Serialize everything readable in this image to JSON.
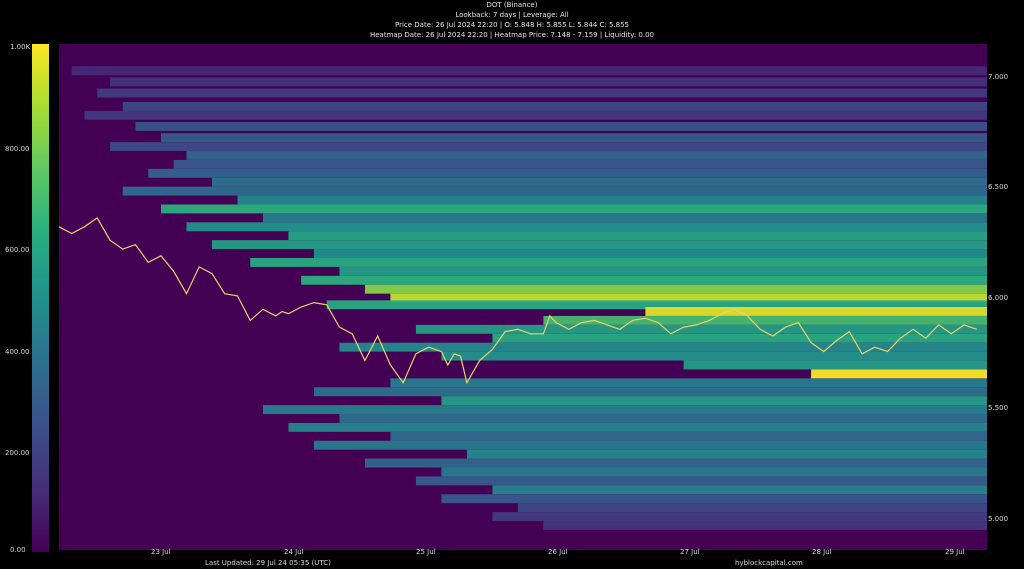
{
  "header": {
    "title": "DOT (Binance)",
    "subtitle": "Lookback: 7 days | Leverage: All",
    "price_line": "Price Date: 26 Jul 2024 22:20 | O: 5.848 H: 5.855 L: 5.844 C: 5.855",
    "heatmap_line": "Heatmap Date: 26 Jul 2024 22:20 | Heatmap Price: 7.148 - 7.159 | Liquidity: 0.00"
  },
  "footer": {
    "updated": "Last Updated: 29 Jul 24 05:35 (UTC)",
    "source": "hyblockcapital.com"
  },
  "colors": {
    "background": "#000000",
    "heatmap_low": "#440154",
    "heatmap_mid": "#21908d",
    "heatmap_high": "#fde725",
    "price_line": "#e8d46a"
  },
  "chart_data": {
    "type": "heatmap",
    "title": "DOT (Binance)",
    "colorbar": {
      "ticks": [
        "0.00",
        "200.00",
        "400.00",
        "600.00",
        "800.00",
        "1.00K"
      ],
      "range": [
        0,
        1000
      ]
    },
    "x_ticks": [
      {
        "label": "23 Jul",
        "t": 1
      },
      {
        "label": "24 Jul",
        "t": 2
      },
      {
        "label": "25 Jul",
        "t": 3
      },
      {
        "label": "26 Jul",
        "t": 4
      },
      {
        "label": "27 Jul",
        "t": 5
      },
      {
        "label": "28 Jul",
        "t": 6
      },
      {
        "label": "29 Jul",
        "t": 7
      }
    ],
    "xlim": [
      0,
      7.28
    ],
    "y_ticks": [
      "5.000",
      "5.500",
      "6.000",
      "6.500",
      "7.000"
    ],
    "ylim": [
      4.85,
      7.12
    ],
    "liquidity_bands": [
      {
        "price": 7.0,
        "value": 120,
        "start": 0.1
      },
      {
        "price": 6.95,
        "value": 150,
        "start": 0.4
      },
      {
        "price": 6.9,
        "value": 180,
        "start": 0.3
      },
      {
        "price": 6.84,
        "value": 220,
        "start": 0.5
      },
      {
        "price": 6.8,
        "value": 170,
        "start": 0.2
      },
      {
        "price": 6.75,
        "value": 260,
        "start": 0.6
      },
      {
        "price": 6.7,
        "value": 300,
        "start": 0.8
      },
      {
        "price": 6.66,
        "value": 230,
        "start": 0.4
      },
      {
        "price": 6.62,
        "value": 340,
        "start": 1.0
      },
      {
        "price": 6.58,
        "value": 280,
        "start": 0.9
      },
      {
        "price": 6.54,
        "value": 320,
        "start": 0.7
      },
      {
        "price": 6.5,
        "value": 380,
        "start": 1.2
      },
      {
        "price": 6.46,
        "value": 360,
        "start": 0.5
      },
      {
        "price": 6.42,
        "value": 470,
        "start": 1.4
      },
      {
        "price": 6.38,
        "value": 640,
        "start": 0.8
      },
      {
        "price": 6.34,
        "value": 420,
        "start": 1.6
      },
      {
        "price": 6.3,
        "value": 520,
        "start": 1.0
      },
      {
        "price": 6.26,
        "value": 600,
        "start": 1.8
      },
      {
        "price": 6.22,
        "value": 560,
        "start": 1.2
      },
      {
        "price": 6.18,
        "value": 500,
        "start": 2.0
      },
      {
        "price": 6.14,
        "value": 620,
        "start": 1.5
      },
      {
        "price": 6.1,
        "value": 560,
        "start": 2.2
      },
      {
        "price": 6.06,
        "value": 640,
        "start": 1.9
      },
      {
        "price": 6.02,
        "value": 820,
        "start": 2.4
      },
      {
        "price": 5.98,
        "value": 920,
        "start": 2.6
      },
      {
        "price": 5.95,
        "value": 620,
        "start": 2.1
      },
      {
        "price": 5.92,
        "value": 960,
        "start": 4.6
      },
      {
        "price": 5.88,
        "value": 700,
        "start": 3.8
      },
      {
        "price": 5.84,
        "value": 560,
        "start": 2.8
      },
      {
        "price": 5.8,
        "value": 620,
        "start": 3.4
      },
      {
        "price": 5.76,
        "value": 480,
        "start": 2.2
      },
      {
        "price": 5.72,
        "value": 520,
        "start": 3.0
      },
      {
        "price": 5.68,
        "value": 560,
        "start": 4.9
      },
      {
        "price": 5.64,
        "value": 1000,
        "start": 5.9
      },
      {
        "price": 5.6,
        "value": 420,
        "start": 2.6
      },
      {
        "price": 5.56,
        "value": 380,
        "start": 2.0
      },
      {
        "price": 5.52,
        "value": 560,
        "start": 3.0
      },
      {
        "price": 5.48,
        "value": 440,
        "start": 1.6
      },
      {
        "price": 5.44,
        "value": 380,
        "start": 2.2
      },
      {
        "price": 5.4,
        "value": 460,
        "start": 1.8
      },
      {
        "price": 5.36,
        "value": 360,
        "start": 2.6
      },
      {
        "price": 5.32,
        "value": 420,
        "start": 2.0
      },
      {
        "price": 5.28,
        "value": 480,
        "start": 3.2
      },
      {
        "price": 5.24,
        "value": 340,
        "start": 2.4
      },
      {
        "price": 5.2,
        "value": 420,
        "start": 3.0
      },
      {
        "price": 5.16,
        "value": 300,
        "start": 2.8
      },
      {
        "price": 5.12,
        "value": 460,
        "start": 3.4
      },
      {
        "price": 5.08,
        "value": 280,
        "start": 3.0
      },
      {
        "price": 5.04,
        "value": 220,
        "start": 3.6
      },
      {
        "price": 5.0,
        "value": 180,
        "start": 3.4
      },
      {
        "price": 4.96,
        "value": 160,
        "start": 3.8
      }
    ],
    "price_series": {
      "t": [
        0.0,
        0.1,
        0.2,
        0.3,
        0.4,
        0.5,
        0.6,
        0.7,
        0.8,
        0.9,
        1.0,
        1.1,
        1.2,
        1.3,
        1.4,
        1.5,
        1.6,
        1.7,
        1.75,
        1.8,
        1.9,
        2.0,
        2.1,
        2.2,
        2.3,
        2.4,
        2.5,
        2.6,
        2.7,
        2.8,
        2.9,
        3.0,
        3.05,
        3.1,
        3.15,
        3.2,
        3.3,
        3.4,
        3.5,
        3.6,
        3.7,
        3.8,
        3.85,
        3.9,
        4.0,
        4.1,
        4.2,
        4.3,
        4.4,
        4.5,
        4.6,
        4.7,
        4.8,
        4.9,
        5.0,
        5.1,
        5.2,
        5.3,
        5.4,
        5.5,
        5.6,
        5.7,
        5.8,
        5.9,
        6.0,
        6.1,
        6.2,
        6.3,
        6.4,
        6.5,
        6.6,
        6.7,
        6.8,
        6.9,
        7.0,
        7.1,
        7.2
      ],
      "price": [
        6.3,
        6.27,
        6.3,
        6.34,
        6.24,
        6.2,
        6.22,
        6.14,
        6.17,
        6.1,
        6.0,
        6.12,
        6.09,
        6.0,
        5.99,
        5.88,
        5.93,
        5.9,
        5.92,
        5.91,
        5.94,
        5.96,
        5.95,
        5.85,
        5.82,
        5.7,
        5.81,
        5.68,
        5.6,
        5.73,
        5.76,
        5.74,
        5.68,
        5.73,
        5.72,
        5.6,
        5.7,
        5.75,
        5.83,
        5.84,
        5.82,
        5.82,
        5.9,
        5.87,
        5.84,
        5.87,
        5.88,
        5.86,
        5.84,
        5.88,
        5.89,
        5.87,
        5.82,
        5.85,
        5.86,
        5.88,
        5.91,
        5.93,
        5.9,
        5.84,
        5.81,
        5.85,
        5.87,
        5.78,
        5.74,
        5.79,
        5.83,
        5.73,
        5.76,
        5.74,
        5.8,
        5.84,
        5.8,
        5.86,
        5.82,
        5.86,
        5.84
      ]
    }
  }
}
